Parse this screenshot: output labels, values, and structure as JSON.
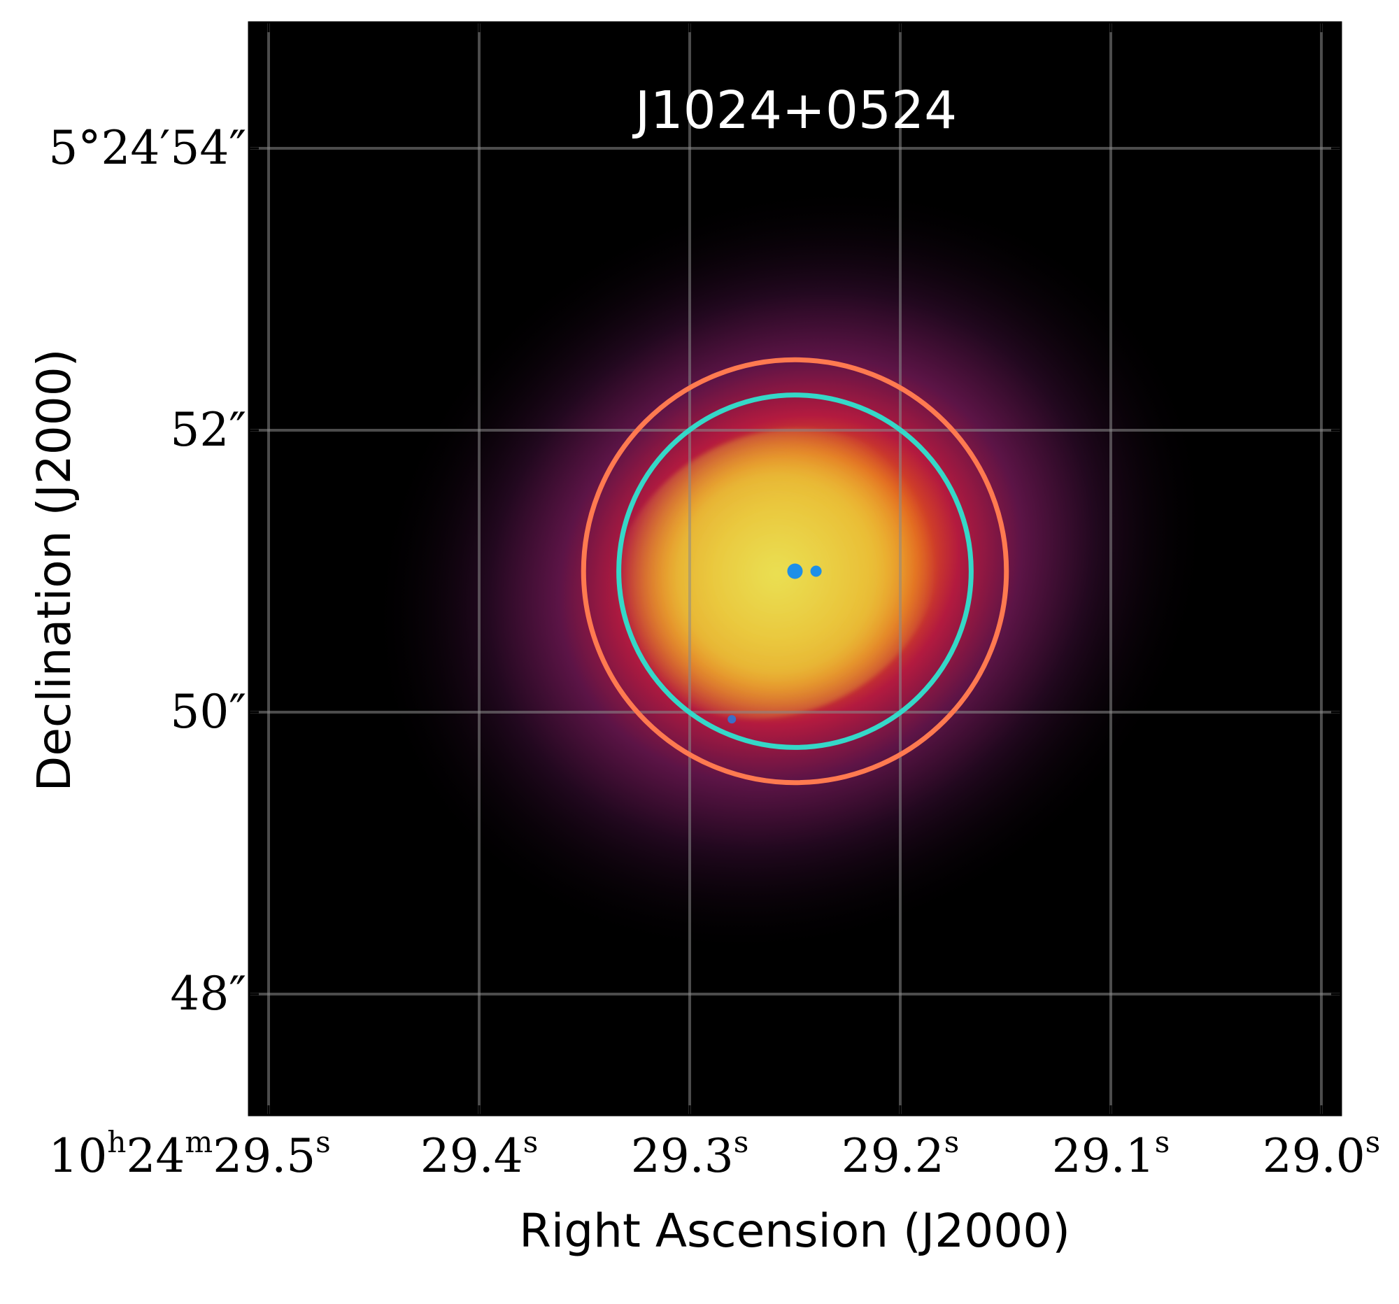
{
  "title": "J1024+0524",
  "x_axis": {
    "label": "Right Ascension (J2000)",
    "ticks": [
      {
        "value": 29.5,
        "parts": [
          [
            "10",
            "h"
          ],
          [
            "24",
            "m"
          ],
          [
            "29.5",
            "s"
          ]
        ]
      },
      {
        "value": 29.4,
        "parts": [
          [
            "29.4",
            "s"
          ]
        ]
      },
      {
        "value": 29.3,
        "parts": [
          [
            "29.3",
            "s"
          ]
        ]
      },
      {
        "value": 29.2,
        "parts": [
          [
            "29.2",
            "s"
          ]
        ]
      },
      {
        "value": 29.1,
        "parts": [
          [
            "29.1",
            "s"
          ]
        ]
      },
      {
        "value": 29.0,
        "parts": [
          [
            "29.0",
            "s"
          ]
        ]
      }
    ]
  },
  "y_axis": {
    "label": "Declination (J2000)",
    "ticks": [
      {
        "value": 54,
        "text": "5°24′54″"
      },
      {
        "value": 52,
        "text": "52″"
      },
      {
        "value": 50,
        "text": "50″"
      },
      {
        "value": 48,
        "text": "48″"
      }
    ]
  },
  "image": {
    "colormap": "inferno-like (black → magenta → red → orange → yellow)",
    "background_color": "#000000",
    "grid": true,
    "grid_color": "#8a8a8a"
  },
  "apertures": [
    {
      "name": "outer aperture",
      "color": "#ff7a50",
      "ra_center": 29.25,
      "dec_center": 51.0,
      "radius_arcsec": 1.5
    },
    {
      "name": "inner aperture",
      "color": "#35d8c8",
      "ra_center": 29.25,
      "dec_center": 51.0,
      "radius_arcsec": 1.25
    }
  ],
  "blue_sources": [
    {
      "name": "source-1",
      "ra": 29.25,
      "dec": 51.0
    },
    {
      "name": "source-2",
      "ra": 29.24,
      "dec": 51.0
    },
    {
      "name": "source-3",
      "ra": 29.28,
      "dec": 49.95
    }
  ]
}
